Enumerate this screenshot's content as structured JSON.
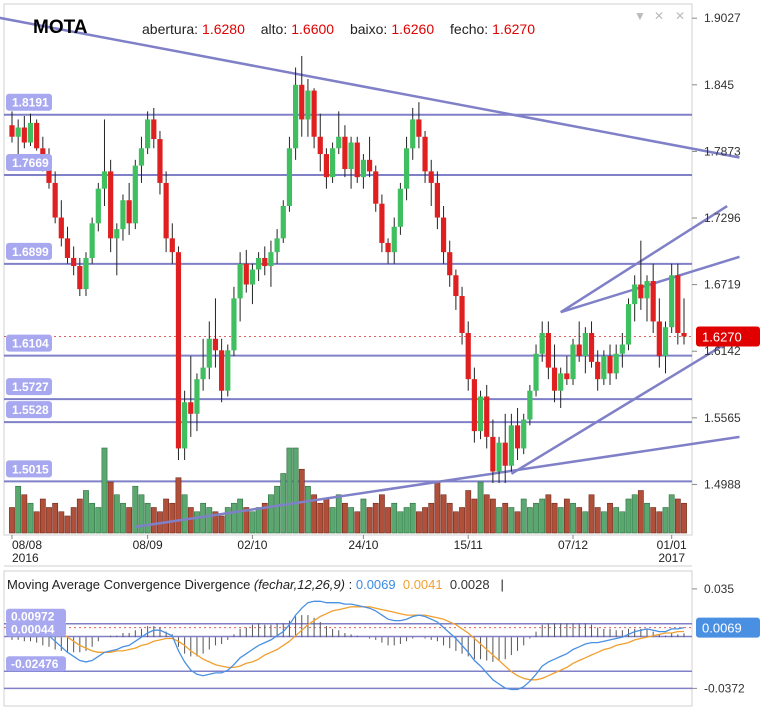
{
  "header": {
    "symbol": "MOTA",
    "labels": [
      "abertura:",
      "alto:",
      "baixo:",
      "fecho:"
    ],
    "values": [
      "1.6280",
      "1.6600",
      "1.6260",
      "1.6270"
    ]
  },
  "controls": [
    "▼",
    "✕",
    "✕"
  ],
  "colors": {
    "up": "#3fbf5f",
    "down": "#e02020",
    "line": "#8080c8",
    "level_label_bg": "#a8a8f0",
    "price_tag": "#e00000",
    "macd": "#4a90e2",
    "signal": "#f0a030"
  },
  "macd_header": {
    "title": "Moving Average Convergence Divergence",
    "params": "(fechar,12,26,9)",
    "sep": ":",
    "macd": "0.0069",
    "signal": "0.0041",
    "hist": "0.0028",
    "cursor": "|"
  },
  "chart_data": [
    {
      "type": "candlestick",
      "symbol": "MOTA",
      "y_ticks": [
        "1.9027",
        "1.845",
        "1.7873",
        "1.7296",
        "1.6719",
        "1.6142",
        "1.5565",
        "1.4988"
      ],
      "ylim": [
        1.455,
        1.915
      ],
      "x_labels": [
        {
          "i": 0,
          "top": "08/08",
          "bottom": "2016"
        },
        {
          "i": 22,
          "top": "08/09",
          "bottom": ""
        },
        {
          "i": 39,
          "top": "02/10",
          "bottom": ""
        },
        {
          "i": 57,
          "top": "24/10",
          "bottom": ""
        },
        {
          "i": 74,
          "top": "15/11",
          "bottom": ""
        },
        {
          "i": 91,
          "top": "07/12",
          "bottom": ""
        },
        {
          "i": 107,
          "top": "01/01",
          "bottom": "2017"
        }
      ],
      "horizontal_levels": [
        "1.8191",
        "1.7669",
        "1.6899",
        "1.6104",
        "1.5727",
        "1.5528",
        "1.5015"
      ],
      "last_price": "1.6270",
      "candles": [
        [
          1.81,
          1.822,
          1.795,
          1.8
        ],
        [
          1.8,
          1.815,
          1.785,
          1.808
        ],
        [
          1.808,
          1.818,
          1.79,
          1.795
        ],
        [
          1.795,
          1.82,
          1.792,
          1.812
        ],
        [
          1.812,
          1.815,
          1.788,
          1.79
        ],
        [
          1.79,
          1.8,
          1.77,
          1.778
        ],
        [
          1.778,
          1.79,
          1.755,
          1.76
        ],
        [
          1.76,
          1.77,
          1.725,
          1.73
        ],
        [
          1.73,
          1.745,
          1.705,
          1.712
        ],
        [
          1.712,
          1.722,
          1.69,
          1.695
        ],
        [
          1.695,
          1.705,
          1.68,
          1.688
        ],
        [
          1.688,
          1.695,
          1.662,
          1.668
        ],
        [
          1.668,
          1.7,
          1.662,
          1.695
        ],
        [
          1.695,
          1.73,
          1.69,
          1.725
        ],
        [
          1.725,
          1.76,
          1.718,
          1.755
        ],
        [
          1.755,
          1.815,
          1.74,
          1.77
        ],
        [
          1.77,
          1.78,
          1.7,
          1.712
        ],
        [
          1.712,
          1.725,
          1.68,
          1.72
        ],
        [
          1.72,
          1.75,
          1.71,
          1.745
        ],
        [
          1.745,
          1.76,
          1.715,
          1.725
        ],
        [
          1.725,
          1.78,
          1.72,
          1.775
        ],
        [
          1.775,
          1.8,
          1.76,
          1.79
        ],
        [
          1.79,
          1.822,
          1.785,
          1.815
        ],
        [
          1.815,
          1.825,
          1.79,
          1.798
        ],
        [
          1.798,
          1.805,
          1.75,
          1.76
        ],
        [
          1.76,
          1.77,
          1.7,
          1.712
        ],
        [
          1.712,
          1.725,
          1.69,
          1.7
        ],
        [
          1.7,
          1.705,
          1.52,
          1.53
        ],
        [
          1.53,
          1.58,
          1.52,
          1.57
        ],
        [
          1.57,
          1.61,
          1.54,
          1.56
        ],
        [
          1.56,
          1.595,
          1.545,
          1.59
        ],
        [
          1.59,
          1.625,
          1.58,
          1.6
        ],
        [
          1.6,
          1.64,
          1.59,
          1.625
        ],
        [
          1.625,
          1.66,
          1.6,
          1.615
        ],
        [
          1.615,
          1.625,
          1.57,
          1.58
        ],
        [
          1.58,
          1.62,
          1.575,
          1.615
        ],
        [
          1.615,
          1.67,
          1.61,
          1.66
        ],
        [
          1.66,
          1.7,
          1.64,
          1.69
        ],
        [
          1.69,
          1.702,
          1.665,
          1.672
        ],
        [
          1.672,
          1.69,
          1.655,
          1.685
        ],
        [
          1.685,
          1.7,
          1.675,
          1.695
        ],
        [
          1.695,
          1.705,
          1.68,
          1.688
        ],
        [
          1.688,
          1.71,
          1.67,
          1.7
        ],
        [
          1.7,
          1.72,
          1.69,
          1.712
        ],
        [
          1.712,
          1.745,
          1.708,
          1.74
        ],
        [
          1.74,
          1.8,
          1.735,
          1.79
        ],
        [
          1.79,
          1.86,
          1.78,
          1.845
        ],
        [
          1.845,
          1.87,
          1.8,
          1.815
        ],
        [
          1.815,
          1.85,
          1.8,
          1.84
        ],
        [
          1.84,
          1.842,
          1.79,
          1.8
        ],
        [
          1.8,
          1.82,
          1.77,
          1.785
        ],
        [
          1.785,
          1.79,
          1.755,
          1.765
        ],
        [
          1.765,
          1.795,
          1.76,
          1.79
        ],
        [
          1.79,
          1.822,
          1.785,
          1.8
        ],
        [
          1.8,
          1.81,
          1.765,
          1.772
        ],
        [
          1.772,
          1.8,
          1.755,
          1.795
        ],
        [
          1.795,
          1.8,
          1.76,
          1.765
        ],
        [
          1.765,
          1.785,
          1.755,
          1.78
        ],
        [
          1.78,
          1.8,
          1.765,
          1.77
        ],
        [
          1.77,
          1.775,
          1.735,
          1.742
        ],
        [
          1.742,
          1.75,
          1.7,
          1.708
        ],
        [
          1.708,
          1.712,
          1.69,
          1.7
        ],
        [
          1.7,
          1.73,
          1.69,
          1.722
        ],
        [
          1.722,
          1.76,
          1.715,
          1.755
        ],
        [
          1.755,
          1.8,
          1.745,
          1.79
        ],
        [
          1.79,
          1.825,
          1.78,
          1.815
        ],
        [
          1.815,
          1.83,
          1.79,
          1.8
        ],
        [
          1.8,
          1.805,
          1.76,
          1.77
        ],
        [
          1.77,
          1.78,
          1.74,
          1.76
        ],
        [
          1.76,
          1.77,
          1.72,
          1.73
        ],
        [
          1.73,
          1.74,
          1.69,
          1.7
        ],
        [
          1.7,
          1.71,
          1.67,
          1.68
        ],
        [
          1.68,
          1.685,
          1.65,
          1.662
        ],
        [
          1.662,
          1.67,
          1.62,
          1.63
        ],
        [
          1.63,
          1.64,
          1.58,
          1.59
        ],
        [
          1.59,
          1.6,
          1.535,
          1.545
        ],
        [
          1.545,
          1.58,
          1.538,
          1.575
        ],
        [
          1.575,
          1.585,
          1.53,
          1.54
        ],
        [
          1.54,
          1.555,
          1.5,
          1.51
        ],
        [
          1.51,
          1.54,
          1.5,
          1.535
        ],
        [
          1.535,
          1.56,
          1.5,
          1.515
        ],
        [
          1.515,
          1.56,
          1.51,
          1.55
        ],
        [
          1.55,
          1.565,
          1.52,
          1.53
        ],
        [
          1.53,
          1.56,
          1.525,
          1.555
        ],
        [
          1.555,
          1.585,
          1.55,
          1.58
        ],
        [
          1.58,
          1.62,
          1.575,
          1.612
        ],
        [
          1.612,
          1.64,
          1.605,
          1.63
        ],
        [
          1.63,
          1.64,
          1.59,
          1.6
        ],
        [
          1.6,
          1.62,
          1.57,
          1.58
        ],
        [
          1.58,
          1.6,
          1.565,
          1.595
        ],
        [
          1.595,
          1.61,
          1.585,
          1.59
        ],
        [
          1.59,
          1.625,
          1.585,
          1.62
        ],
        [
          1.62,
          1.64,
          1.605,
          1.61
        ],
        [
          1.61,
          1.635,
          1.595,
          1.63
        ],
        [
          1.63,
          1.64,
          1.6,
          1.605
        ],
        [
          1.605,
          1.615,
          1.58,
          1.59
        ],
        [
          1.59,
          1.615,
          1.585,
          1.61
        ],
        [
          1.61,
          1.62,
          1.585,
          1.595
        ],
        [
          1.595,
          1.62,
          1.59,
          1.612
        ],
        [
          1.612,
          1.63,
          1.6,
          1.62
        ],
        [
          1.62,
          1.66,
          1.615,
          1.655
        ],
        [
          1.655,
          1.68,
          1.64,
          1.672
        ],
        [
          1.672,
          1.71,
          1.65,
          1.66
        ],
        [
          1.66,
          1.68,
          1.64,
          1.675
        ],
        [
          1.675,
          1.69,
          1.63,
          1.64
        ],
        [
          1.64,
          1.66,
          1.6,
          1.61
        ],
        [
          1.61,
          1.64,
          1.595,
          1.635
        ],
        [
          1.635,
          1.69,
          1.63,
          1.68
        ],
        [
          1.68,
          1.69,
          1.62,
          1.63
        ],
        [
          1.63,
          1.66,
          1.62,
          1.627
        ]
      ],
      "volume": [
        0.3,
        0.55,
        0.45,
        0.35,
        0.25,
        0.4,
        0.3,
        0.35,
        0.25,
        0.2,
        0.3,
        0.4,
        0.5,
        0.35,
        0.3,
        1.0,
        0.6,
        0.45,
        0.35,
        0.3,
        0.55,
        0.45,
        0.35,
        0.3,
        0.25,
        0.4,
        0.35,
        0.65,
        0.45,
        0.3,
        0.25,
        0.35,
        0.3,
        0.25,
        0.2,
        0.3,
        0.35,
        0.4,
        0.3,
        0.25,
        0.3,
        0.35,
        0.45,
        0.55,
        0.7,
        1.0,
        1.0,
        0.75,
        0.55,
        0.45,
        0.35,
        0.4,
        0.3,
        0.45,
        0.35,
        0.3,
        0.25,
        0.4,
        0.3,
        0.35,
        0.45,
        0.3,
        0.35,
        0.25,
        0.3,
        0.35,
        0.25,
        0.3,
        0.35,
        0.6,
        0.45,
        0.35,
        0.25,
        0.3,
        0.5,
        0.4,
        0.6,
        0.45,
        0.4,
        0.3,
        0.35,
        0.3,
        0.25,
        0.4,
        0.3,
        0.35,
        0.4,
        0.45,
        0.35,
        0.3,
        0.4,
        0.35,
        0.3,
        0.25,
        0.45,
        0.3,
        0.25,
        0.35,
        0.3,
        0.25,
        0.4,
        0.45,
        0.5,
        0.35,
        0.3,
        0.25,
        0.3,
        0.45,
        0.4,
        0.35
      ]
    },
    {
      "type": "line",
      "name": "Moving Average Convergence Divergence",
      "y_ticks": [
        "0.035",
        "-0.0372"
      ],
      "ylim": [
        -0.05,
        0.048
      ],
      "levels": [
        "0.00972",
        "0.00044",
        "-0.02476"
      ],
      "last_value": "0.0069",
      "macd": [
        0.012,
        0.011,
        0.01,
        0.009,
        0.007,
        0.004,
        0.001,
        -0.003,
        -0.007,
        -0.011,
        -0.014,
        -0.017,
        -0.018,
        -0.017,
        -0.014,
        -0.011,
        -0.01,
        -0.009,
        -0.007,
        -0.006,
        -0.003,
        0.0,
        0.003,
        0.005,
        0.005,
        0.003,
        0.001,
        -0.01,
        -0.018,
        -0.024,
        -0.027,
        -0.028,
        -0.027,
        -0.026,
        -0.026,
        -0.024,
        -0.02,
        -0.015,
        -0.012,
        -0.009,
        -0.006,
        -0.004,
        -0.002,
        0.001,
        0.004,
        0.009,
        0.016,
        0.021,
        0.025,
        0.026,
        0.026,
        0.025,
        0.025,
        0.025,
        0.024,
        0.024,
        0.023,
        0.022,
        0.021,
        0.019,
        0.016,
        0.013,
        0.012,
        0.012,
        0.013,
        0.015,
        0.016,
        0.015,
        0.013,
        0.011,
        0.007,
        0.003,
        -0.001,
        -0.006,
        -0.011,
        -0.017,
        -0.021,
        -0.026,
        -0.031,
        -0.034,
        -0.037,
        -0.038,
        -0.038,
        -0.036,
        -0.032,
        -0.027,
        -0.021,
        -0.018,
        -0.016,
        -0.014,
        -0.012,
        -0.009,
        -0.007,
        -0.005,
        -0.004,
        -0.004,
        -0.003,
        -0.002,
        -0.001,
        0.0,
        0.002,
        0.004,
        0.005,
        0.006,
        0.005,
        0.004,
        0.004,
        0.006,
        0.006,
        0.0069
      ],
      "signal": [
        0.014,
        0.013,
        0.013,
        0.012,
        0.011,
        0.01,
        0.008,
        0.006,
        0.003,
        0.0,
        -0.003,
        -0.006,
        -0.008,
        -0.01,
        -0.011,
        -0.011,
        -0.011,
        -0.01,
        -0.01,
        -0.009,
        -0.008,
        -0.006,
        -0.005,
        -0.003,
        -0.002,
        -0.001,
        -0.001,
        -0.003,
        -0.006,
        -0.01,
        -0.013,
        -0.016,
        -0.018,
        -0.02,
        -0.021,
        -0.022,
        -0.022,
        -0.021,
        -0.019,
        -0.018,
        -0.016,
        -0.013,
        -0.011,
        -0.009,
        -0.006,
        -0.003,
        0.001,
        0.005,
        0.009,
        0.012,
        0.015,
        0.017,
        0.019,
        0.02,
        0.021,
        0.022,
        0.022,
        0.022,
        0.022,
        0.021,
        0.02,
        0.019,
        0.018,
        0.017,
        0.016,
        0.016,
        0.016,
        0.016,
        0.015,
        0.014,
        0.013,
        0.011,
        0.009,
        0.006,
        0.003,
        -0.001,
        -0.005,
        -0.009,
        -0.013,
        -0.017,
        -0.021,
        -0.025,
        -0.028,
        -0.03,
        -0.031,
        -0.031,
        -0.03,
        -0.028,
        -0.026,
        -0.024,
        -0.022,
        -0.019,
        -0.017,
        -0.015,
        -0.013,
        -0.011,
        -0.009,
        -0.008,
        -0.006,
        -0.005,
        -0.004,
        -0.002,
        -0.001,
        0.0,
        0.001,
        0.002,
        0.003,
        0.003,
        0.004,
        0.0041
      ]
    }
  ]
}
